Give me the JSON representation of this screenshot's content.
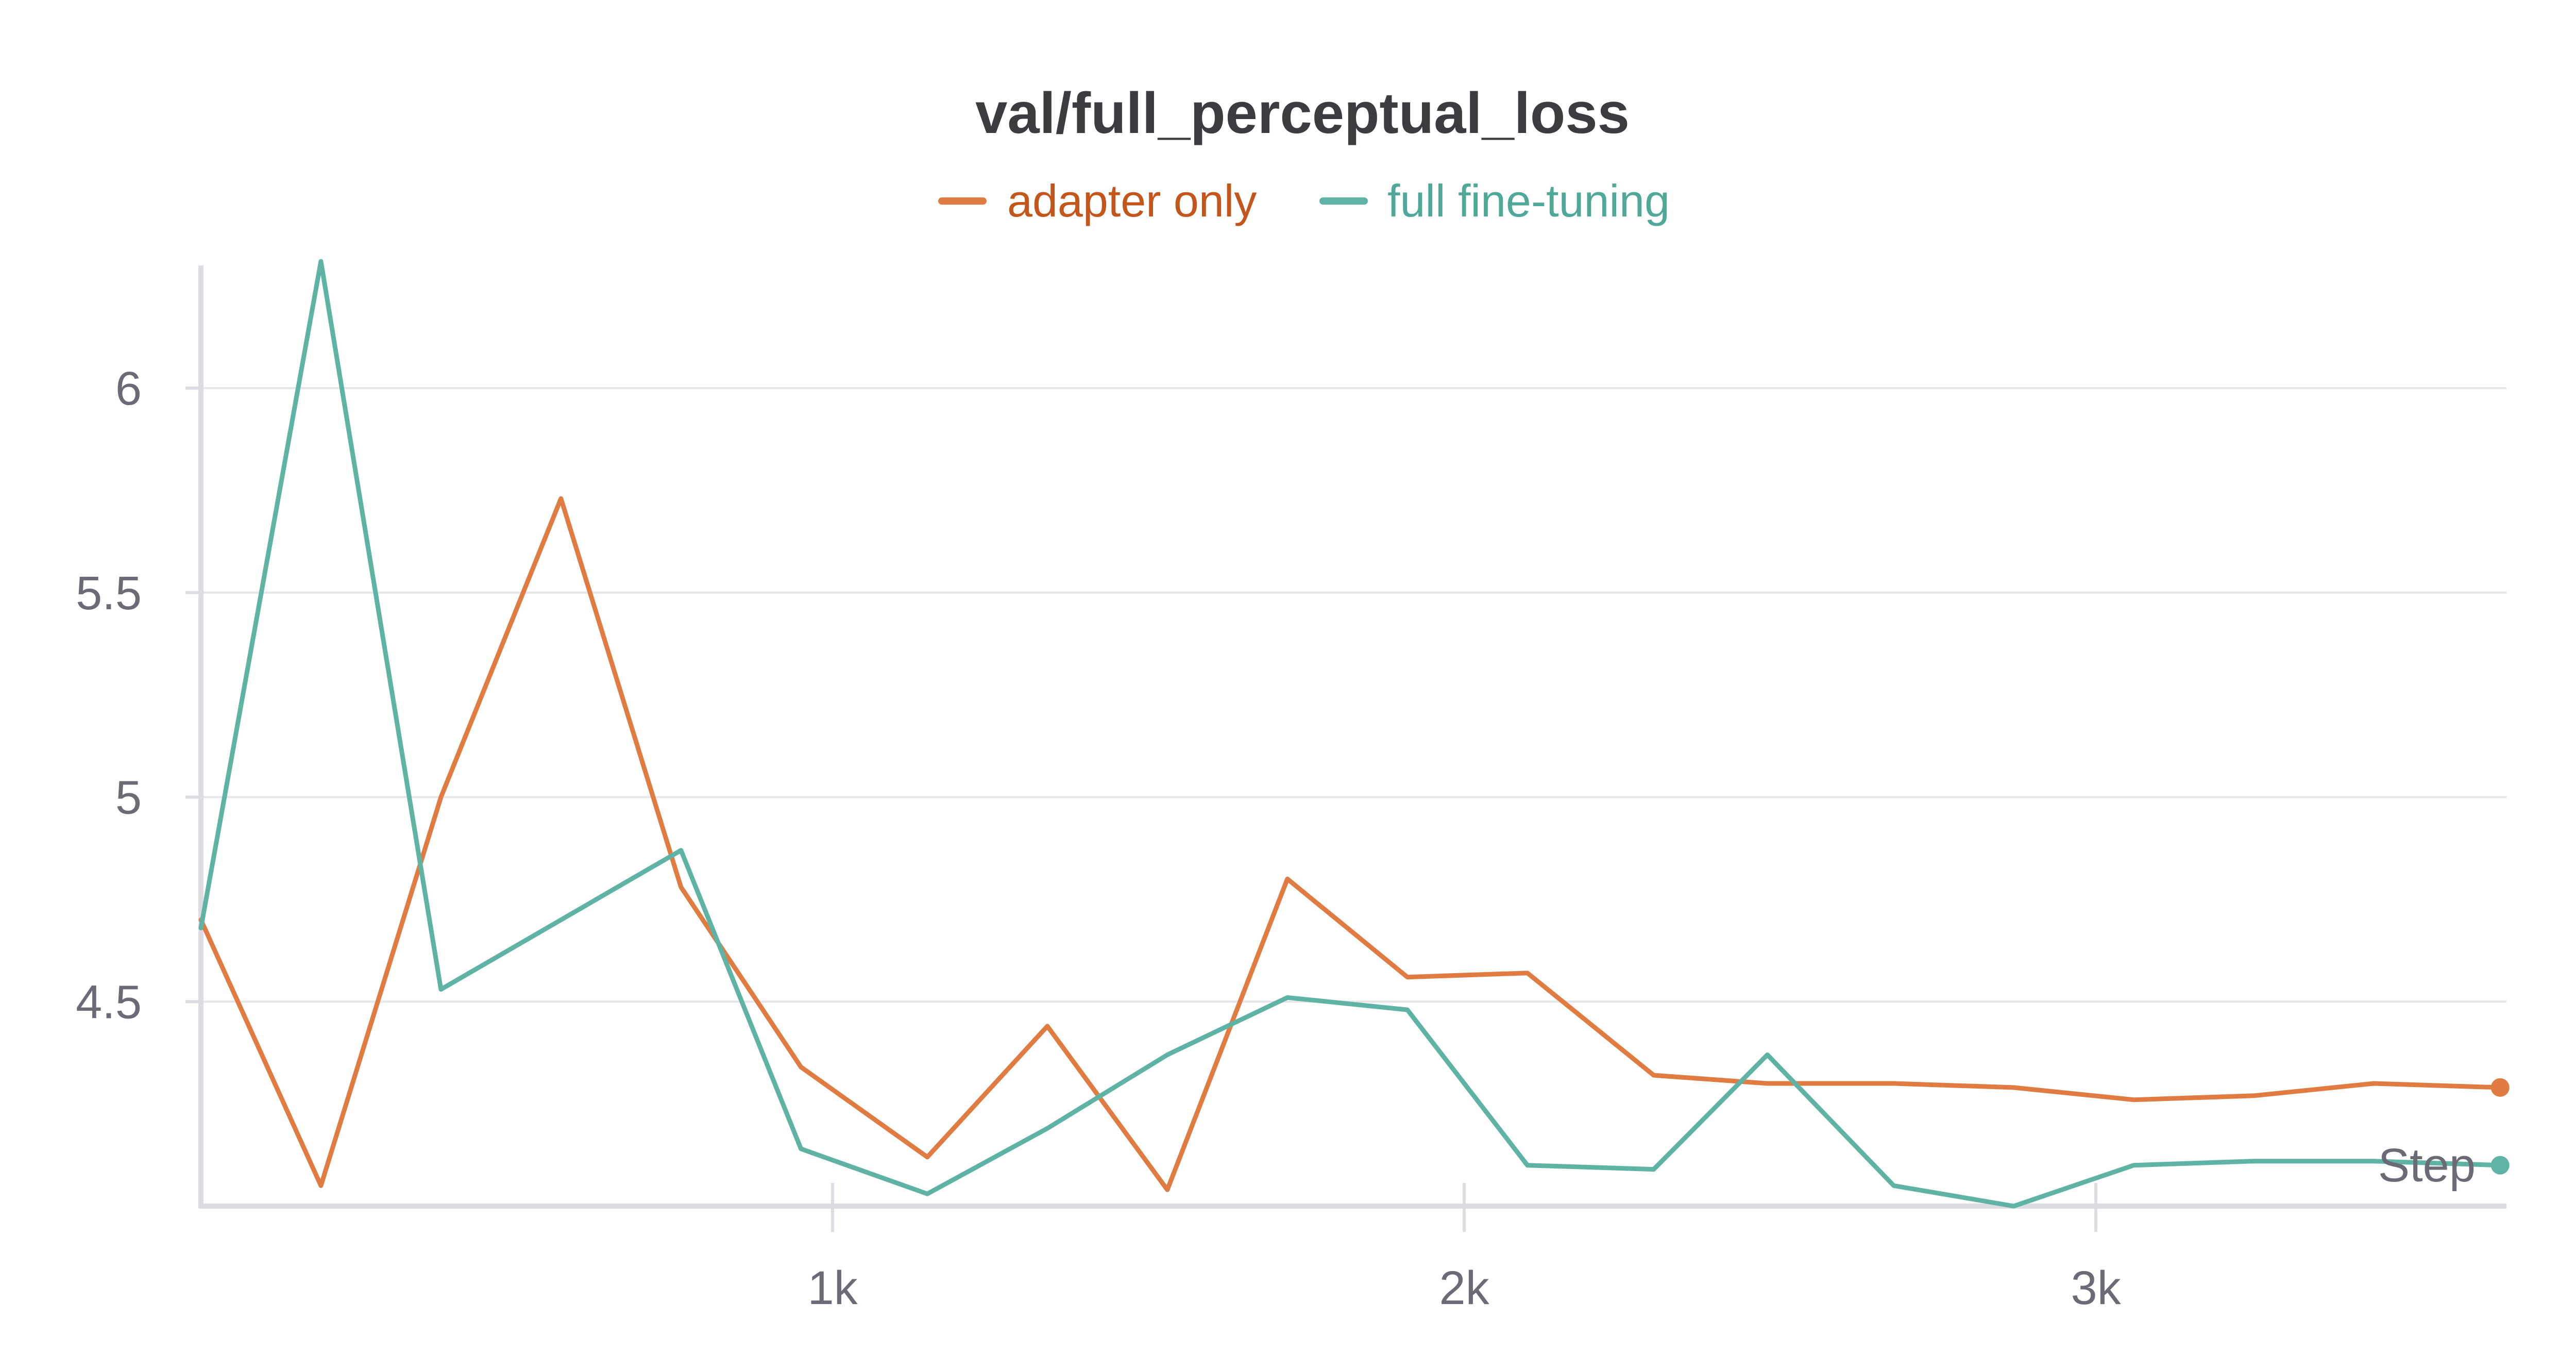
{
  "chart_data": {
    "type": "line",
    "title": "val/full_perceptual_loss",
    "xlabel": "Step",
    "ylabel": "",
    "xlim": [
      0,
      3650
    ],
    "ylim": [
      4.0,
      6.3
    ],
    "x_ticks": [
      {
        "value": 1000,
        "label": "1k"
      },
      {
        "value": 2000,
        "label": "2k"
      },
      {
        "value": 3000,
        "label": "3k"
      }
    ],
    "y_ticks": [
      {
        "value": 4.5,
        "label": "4.5"
      },
      {
        "value": 5,
        "label": "5"
      },
      {
        "value": 5.5,
        "label": "5.5"
      },
      {
        "value": 6,
        "label": "6"
      }
    ],
    "grid": true,
    "legend_position": "top-center",
    "series": [
      {
        "name": "adapter only",
        "color": "#e07b42",
        "x": [
          0,
          190,
          380,
          570,
          760,
          950,
          1150,
          1340,
          1530,
          1720,
          1910,
          2100,
          2300,
          2480,
          2680,
          2870,
          3060,
          3250,
          3440,
          3640
        ],
        "y": [
          4.7,
          4.05,
          5.0,
          5.73,
          4.78,
          4.34,
          4.12,
          4.44,
          4.04,
          4.8,
          4.56,
          4.57,
          4.32,
          4.3,
          4.3,
          4.29,
          4.26,
          4.27,
          4.3,
          4.29
        ]
      },
      {
        "name": "full fine-tuning",
        "color": "#5fb3a5",
        "x": [
          0,
          190,
          380,
          570,
          760,
          950,
          1150,
          1340,
          1530,
          1720,
          1910,
          2100,
          2300,
          2480,
          2680,
          2870,
          3060,
          3250,
          3440,
          3640
        ],
        "y": [
          4.68,
          6.31,
          4.53,
          4.7,
          4.87,
          4.14,
          4.03,
          4.19,
          4.37,
          4.51,
          4.48,
          4.1,
          4.09,
          4.37,
          4.05,
          4.0,
          4.1,
          4.11,
          4.11,
          4.1
        ]
      }
    ]
  }
}
